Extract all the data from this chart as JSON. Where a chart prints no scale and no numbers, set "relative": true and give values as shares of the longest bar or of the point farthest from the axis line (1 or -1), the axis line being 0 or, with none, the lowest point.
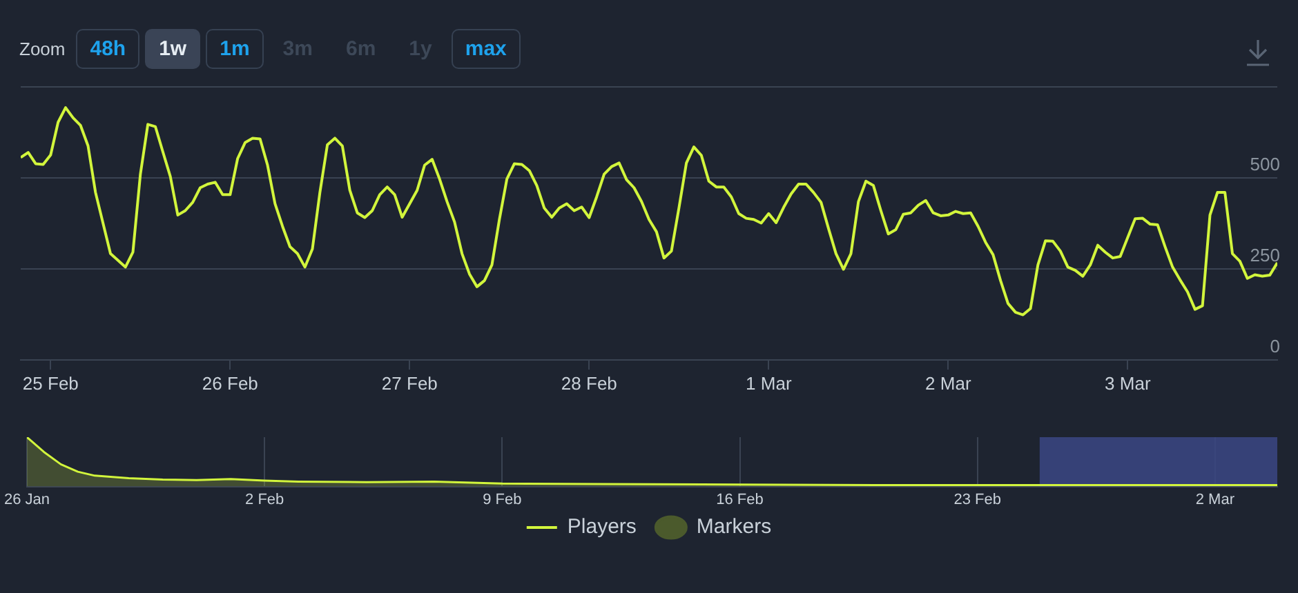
{
  "chart_data": [
    {
      "type": "line",
      "annotations": [
        "Zoom",
        "48h",
        "1w",
        "1m",
        "3m",
        "6m",
        "1y",
        "max"
      ],
      "xlim": [
        "--02-24T20:00",
        "--03-03T20:00"
      ],
      "xticks": [
        {
          "value": "--02-25",
          "label": "25 Feb"
        },
        {
          "value": "--02-26",
          "label": "26 Feb"
        },
        {
          "value": "--02-27",
          "label": "27 Feb"
        },
        {
          "value": "--02-28",
          "label": "28 Feb"
        },
        {
          "value": "--03-01",
          "label": "1 Mar"
        },
        {
          "value": "--03-02",
          "label": "2 Mar"
        },
        {
          "value": "--03-03",
          "label": "3 Mar"
        }
      ],
      "ylim": [
        0,
        750
      ],
      "yticks": [
        0,
        250,
        500,
        {
          "value": 750,
          "label": null
        }
      ],
      "grid": "y",
      "legend": "bottom",
      "marker": "none",
      "series": [
        {
          "name": "Players",
          "type": "line",
          "color": "#d2f53c",
          "x": [
            "--02-24T20:00",
            "--02-24T21:00",
            "--02-24T22:00",
            "--02-24T23:00",
            "--02-25T00:00",
            "--02-25T01:00",
            "--02-25T02:00",
            "--02-25T03:00",
            "--02-25T04:00",
            "--02-25T05:00",
            "--02-25T06:00",
            "--02-25T08:00",
            "--02-25T10:00",
            "--02-25T11:00",
            "--02-25T12:00",
            "--02-25T13:00",
            "--02-25T14:00",
            "--02-25T15:00",
            "--02-25T16:00",
            "--02-25T17:00",
            "--02-25T18:00",
            "--02-25T19:00",
            "--02-25T20:00",
            "--02-25T21:00",
            "--02-25T22:00",
            "--02-25T23:00",
            "--02-26T00:00",
            "--02-26T01:00",
            "--02-26T02:00",
            "--02-26T03:00",
            "--02-26T04:00",
            "--02-26T05:00",
            "--02-26T06:00",
            "--02-26T07:00",
            "--02-26T08:00",
            "--02-26T09:00",
            "--02-26T10:00",
            "--02-26T11:00",
            "--02-26T12:00",
            "--02-26T13:00",
            "--02-26T14:00",
            "--02-26T15:00",
            "--02-26T16:00",
            "--02-26T17:00",
            "--02-26T18:00",
            "--02-26T19:00",
            "--02-26T20:00",
            "--02-26T21:00",
            "--02-26T22:00",
            "--02-26T23:00",
            "--02-27T00:00",
            "--02-27T01:00",
            "--02-27T02:00",
            "--02-27T03:00",
            "--02-27T04:00",
            "--02-27T05:00",
            "--02-27T06:00",
            "--02-27T07:00",
            "--02-27T08:00",
            "--02-27T09:00",
            "--02-27T10:00",
            "--02-27T11:00",
            "--02-27T12:00",
            "--02-27T13:00",
            "--02-27T14:00",
            "--02-27T15:00",
            "--02-27T16:00",
            "--02-27T17:00",
            "--02-27T18:00",
            "--02-27T19:00",
            "--02-27T20:00",
            "--02-27T21:00",
            "--02-27T22:00",
            "--02-27T23:00",
            "--02-28T00:00",
            "--02-28T01:00",
            "--02-28T02:00",
            "--02-28T03:00",
            "--02-28T04:00",
            "--02-28T05:00",
            "--02-28T06:00",
            "--02-28T07:00",
            "--02-28T08:00",
            "--02-28T09:00",
            "--02-28T10:00",
            "--02-28T11:00",
            "--02-28T12:00",
            "--02-28T13:00",
            "--02-28T14:00",
            "--02-28T15:00",
            "--02-28T16:00",
            "--02-28T17:00",
            "--02-28T18:00",
            "--02-28T19:00",
            "--02-28T20:00",
            "--02-28T21:00",
            "--02-28T22:00",
            "--02-28T23:00",
            "--03-01T00:00",
            "--03-01T01:00",
            "--03-01T02:00",
            "--03-01T03:00",
            "--03-01T04:00",
            "--03-01T05:00",
            "--03-01T06:00",
            "--03-01T07:00",
            "--03-01T08:00",
            "--03-01T09:00",
            "--03-01T10:00",
            "--03-01T11:00",
            "--03-01T12:00",
            "--03-01T13:00",
            "--03-01T14:00",
            "--03-01T15:00",
            "--03-01T16:00",
            "--03-01T17:00",
            "--03-01T18:00",
            "--03-01T19:00",
            "--03-01T20:00",
            "--03-01T21:00",
            "--03-01T22:00",
            "--03-01T23:00",
            "--03-02T00:00",
            "--03-02T01:00",
            "--03-02T02:00",
            "--03-02T03:00",
            "--03-02T04:00",
            "--03-02T05:00",
            "--03-02T06:00",
            "--03-02T07:00",
            "--03-02T08:00",
            "--03-02T09:00",
            "--03-02T10:00",
            "--03-02T11:00",
            "--03-02T12:00",
            "--03-02T13:00",
            "--03-02T14:00",
            "--03-02T15:00",
            "--03-02T16:00",
            "--03-02T17:00",
            "--03-02T18:00",
            "--03-02T19:00",
            "--03-02T20:00",
            "--03-02T21:00",
            "--03-02T22:00",
            "--03-02T23:00",
            "--03-03T00:00",
            "--03-03T01:00",
            "--03-03T02:00",
            "--03-03T03:00",
            "--03-03T04:00",
            "--03-03T05:00",
            "--03-03T06:00",
            "--03-03T07:00",
            "--03-03T08:00",
            "--03-03T09:00",
            "--03-03T10:00",
            "--03-03T11:00",
            "--03-03T12:00",
            "--03-03T13:00",
            "--03-03T14:00",
            "--03-03T15:00",
            "--03-03T16:00",
            "--03-03T17:00",
            "--03-03T18:00",
            "--03-03T19:00",
            "--03-03T20:00"
          ],
          "values": [
            556,
            570,
            539,
            537,
            563,
            653,
            693,
            665,
            644,
            588,
            460,
            292,
            255,
            296,
            510,
            647,
            641,
            572,
            504,
            398,
            410,
            433,
            473,
            483,
            488,
            454,
            454,
            553,
            597,
            609,
            607,
            535,
            429,
            367,
            311,
            292,
            255,
            305,
            460,
            591,
            609,
            588,
            466,
            404,
            391,
            410,
            454,
            475,
            454,
            392,
            429,
            466,
            535,
            551,
            497,
            435,
            379,
            292,
            236,
            201,
            218,
            261,
            386,
            497,
            539,
            537,
            520,
            479,
            417,
            392,
            417,
            429,
            410,
            420,
            391,
            448,
            510,
            531,
            541,
            495,
            473,
            435,
            386,
            352,
            280,
            299,
            417,
            541,
            585,
            562,
            491,
            475,
            475,
            448,
            402,
            389,
            386,
            376,
            402,
            377,
            419,
            456,
            483,
            483,
            460,
            433,
            361,
            292,
            249,
            292,
            435,
            491,
            479,
            410,
            346,
            358,
            400,
            404,
            425,
            438,
            404,
            396,
            398,
            408,
            402,
            404,
            367,
            323,
            289,
            218,
            155,
            131,
            124,
            141,
            261,
            327,
            326,
            299,
            255,
            246,
            230,
            261,
            315,
            296,
            280,
            284,
            336,
            388,
            389,
            373,
            371,
            311,
            255,
            220,
            187,
            139,
            149,
            398,
            460,
            460,
            292,
            271,
            224,
            234,
            230,
            233,
            267
          ]
        },
        {
          "name": "Markers",
          "type": "scatter",
          "color": "#4b5a2c"
        }
      ]
    },
    {
      "type": "area",
      "relative": true,
      "grid": "x",
      "xlim": [
        "--01-26",
        "--03-03T20:00"
      ],
      "xticks": [
        {
          "value": "--01-26",
          "label": "26 Jan"
        },
        {
          "value": "--02-02",
          "label": "2 Feb"
        },
        {
          "value": "--02-09",
          "label": "9 Feb"
        },
        {
          "value": "--02-16",
          "label": "16 Feb"
        },
        {
          "value": "--02-23",
          "label": "23 Feb"
        },
        {
          "value": "--03-02",
          "label": "2 Mar"
        }
      ],
      "bands": [
        {
          "axis": "x",
          "from": "--02-24T20:00",
          "to": "--03-03T20:00",
          "color": "#3b4684"
        }
      ],
      "series": [
        {
          "color": "#d2f53c",
          "x": [
            "--01-26",
            "--01-26T12:00",
            "--01-27",
            "--01-27T12:00",
            "--01-28",
            "--01-29",
            "--01-30",
            "--01-31",
            "--02-01",
            "--02-02",
            "--02-03",
            "--02-05",
            "--02-07",
            "--02-09",
            "--02-12",
            "--02-16",
            "--02-20",
            "--02-23",
            "--02-27",
            "--03-03T20:00"
          ],
          "values": [
            1,
            0.7,
            0.45,
            0.3,
            0.22,
            0.17,
            0.14,
            0.13,
            0.15,
            0.12,
            0.1,
            0.09,
            0.1,
            0.06,
            0.05,
            0.04,
            0.03,
            0.03,
            0.03,
            0.03
          ]
        }
      ]
    }
  ]
}
